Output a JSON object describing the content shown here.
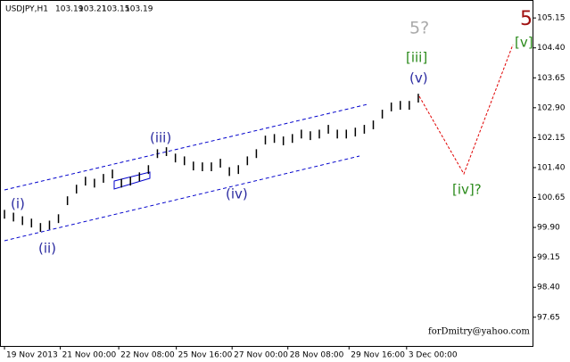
{
  "chart_data": {
    "type": "ohlc",
    "title": "USDJPY,H1",
    "quote": [
      "103.19",
      "103.21",
      "103.15",
      "103.19"
    ],
    "watermark": "forDmitry@yahoo.com",
    "annotations": [
      "(i)",
      "(ii)",
      "(iii)",
      "(iv)",
      "(v)",
      "[iii]",
      "5?",
      "5",
      "[v]",
      "[iv]?"
    ],
    "color": "#000000",
    "high": [
      100.34,
      100.27,
      100.18,
      100.12,
      100.01,
      100.07,
      100.23,
      100.68,
      100.97,
      101.17,
      101.12,
      101.24,
      101.35,
      101.12,
      101.17,
      101.28,
      101.46,
      101.86,
      101.91,
      101.75,
      101.68,
      101.55,
      101.53,
      101.53,
      101.62,
      101.41,
      101.46,
      101.68,
      101.86,
      102.2,
      102.24,
      102.18,
      102.24,
      102.35,
      102.31,
      102.35,
      102.47,
      102.35,
      102.35,
      102.4,
      102.47,
      102.58,
      102.85,
      103.03,
      103.07,
      103.07,
      103.25
    ],
    "low": [
      100.12,
      100.05,
      99.96,
      99.9,
      99.79,
      99.85,
      100.01,
      100.46,
      100.75,
      100.95,
      100.9,
      101.02,
      101.13,
      100.9,
      100.95,
      101.06,
      101.24,
      101.64,
      101.69,
      101.53,
      101.46,
      101.33,
      101.31,
      101.31,
      101.4,
      101.19,
      101.24,
      101.46,
      101.64,
      101.98,
      102.02,
      101.96,
      102.02,
      102.13,
      102.09,
      102.13,
      102.25,
      102.13,
      102.13,
      102.18,
      102.25,
      102.36,
      102.63,
      102.81,
      102.85,
      102.85,
      103.03
    ],
    "xlim": [
      -0.5,
      58.7
    ],
    "xticks": [
      {
        "value": 0,
        "label": "19 Nov 2013"
      },
      {
        "value": 6.2,
        "label": "21 Nov 00:00"
      },
      {
        "value": 12.7,
        "label": "22 Nov 08:00"
      },
      {
        "value": 19.1,
        "label": "25 Nov 16:00"
      },
      {
        "value": 25.3,
        "label": "27 Nov 00:00"
      },
      {
        "value": 31.5,
        "label": "28 Nov 08:00"
      },
      {
        "value": 38.3,
        "label": "29 Nov 16:00"
      },
      {
        "value": 44.7,
        "label": "3 Dec 00:00"
      }
    ],
    "ylim": [
      96.93,
      105.6
    ],
    "yticks": [
      105.15,
      {
        "value": 104.4,
        "label": "104.40"
      },
      103.65,
      {
        "value": 102.9,
        "label": "102.90"
      },
      102.15,
      {
        "value": 101.4,
        "label": "101.40"
      },
      100.65,
      {
        "value": 99.9,
        "label": "99.90"
      },
      99.15,
      {
        "value": 98.4,
        "label": "98.40"
      },
      97.65
    ]
  }
}
